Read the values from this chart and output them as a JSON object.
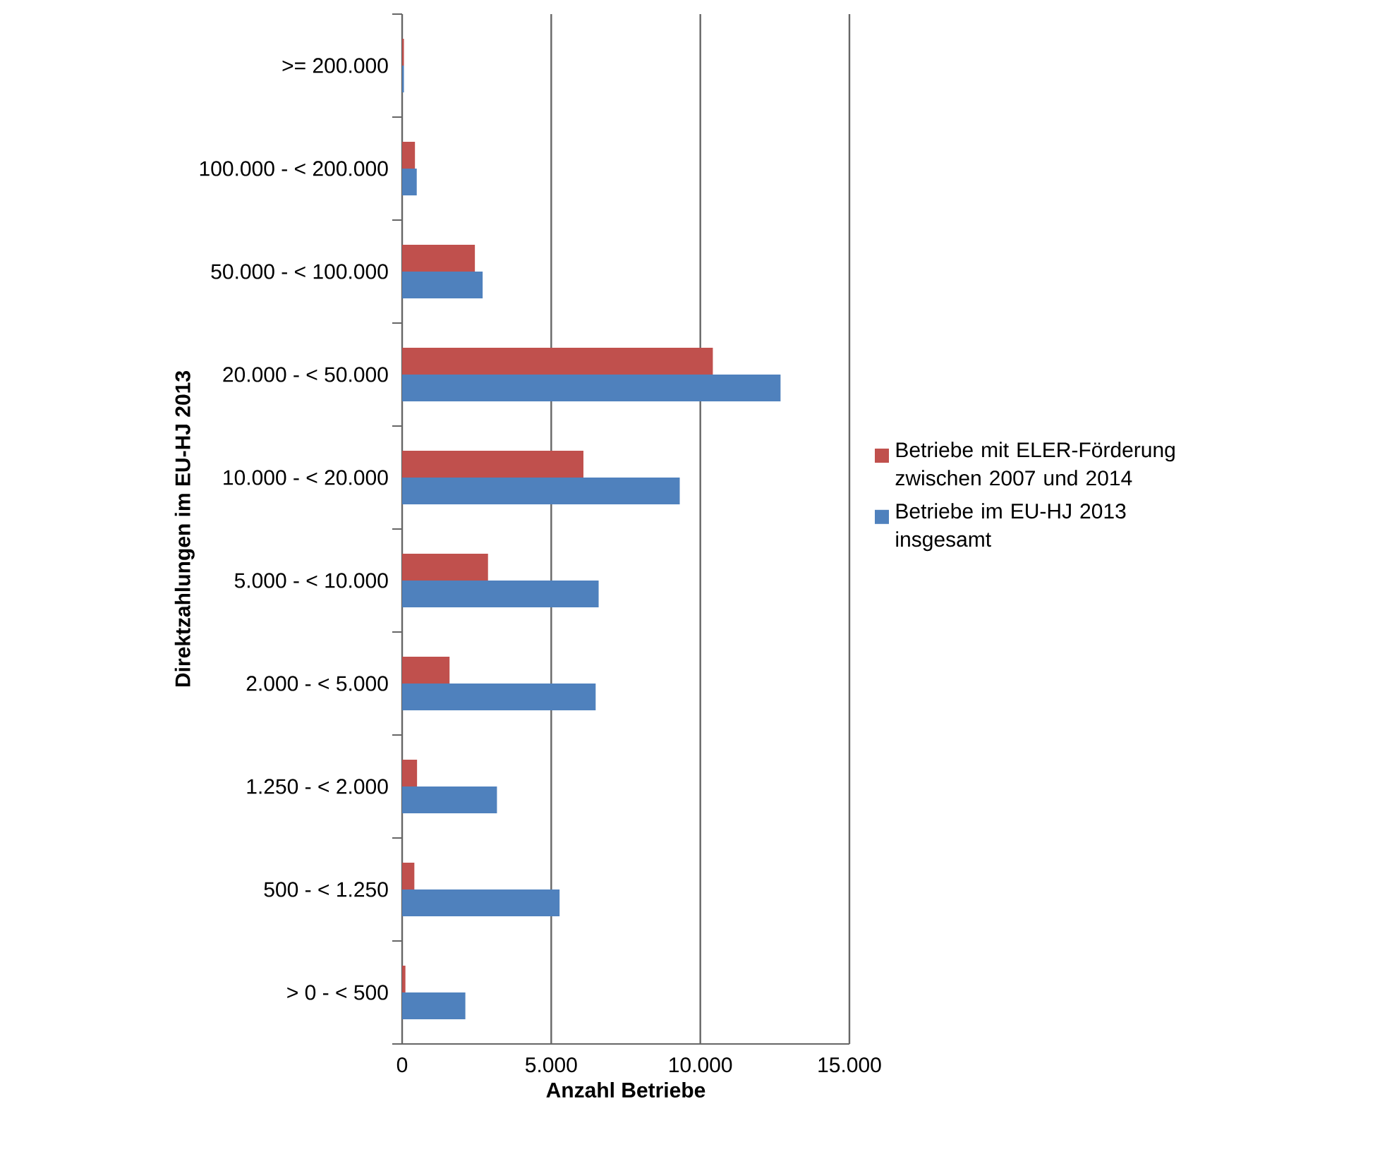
{
  "chart_data": {
    "type": "bar",
    "orientation": "horizontal",
    "xlabel": "Anzahl Betriebe",
    "ylabel": "Direktzahlungen im EU-HJ 2013",
    "categories": [
      ">= 200.000",
      "100.000 - < 200.000",
      "50.000 - < 100.000",
      "20.000 - <  50.000",
      "10.000 - <  20.000",
      "5.000 - <  10.000",
      "2.000 - <   5.000",
      "1.250 - <   2.000",
      "500 - <   1.250",
      "> 0 - <     500"
    ],
    "series": [
      {
        "name": "Betriebe mit ELER-Förderung zwischen 2007 und 2014",
        "color": "#c0504d",
        "values": [
          60,
          430,
          2440,
          10420,
          6080,
          2880,
          1590,
          500,
          410,
          110
        ]
      },
      {
        "name": "Betriebe im EU-HJ 2013 insgesamt",
        "color": "#4f81bd",
        "values": [
          60,
          490,
          2700,
          12690,
          9310,
          6590,
          6490,
          3180,
          5280,
          2120
        ]
      }
    ],
    "xlim": [
      0,
      15000
    ],
    "xticks": [
      0,
      {
        "value": 5000,
        "label": "5.000"
      },
      {
        "value": 10000,
        "label": "10.000"
      },
      {
        "value": 15000,
        "label": "15.000"
      }
    ],
    "grid": "x",
    "legend": "right"
  }
}
